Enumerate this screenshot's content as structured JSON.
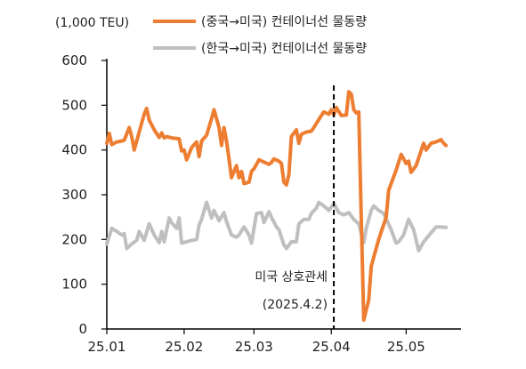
{
  "chart_data": {
    "type": "line",
    "unit_label": "(1,000 TEU)",
    "ylim": [
      0,
      600
    ],
    "yticks": [
      0,
      100,
      200,
      300,
      400,
      500,
      600
    ],
    "ytick_labels": [
      "0",
      "100",
      "200",
      "300",
      "400",
      "500",
      "600"
    ],
    "xticks": [
      {
        "date": "2025-01-01",
        "label": "25.01"
      },
      {
        "date": "2025-02-01",
        "label": "25.02"
      },
      {
        "date": "2025-03-01",
        "label": "25.03"
      },
      {
        "date": "2025-04-01",
        "label": "25.04"
      },
      {
        "date": "2025-05-01",
        "label": "25.05"
      }
    ],
    "x_range": [
      "2025-01-01",
      "2025-05-23"
    ],
    "grid": false,
    "legend_position": "top",
    "annotation": {
      "date": "2025-04-02",
      "line1": "미국 상호관세",
      "line2": "(2025.4.2)"
    },
    "series": [
      {
        "name": "(중국→미국) 컨테이너선 물동량",
        "color": "#ED7D31",
        "points": [
          [
            "2025-01-01",
            415
          ],
          [
            "2025-01-02",
            437
          ],
          [
            "2025-01-03",
            412
          ],
          [
            "2025-01-05",
            418
          ],
          [
            "2025-01-07",
            420
          ],
          [
            "2025-01-08",
            422
          ],
          [
            "2025-01-10",
            450
          ],
          [
            "2025-01-11",
            430
          ],
          [
            "2025-01-12",
            400
          ],
          [
            "2025-01-14",
            440
          ],
          [
            "2025-01-16",
            480
          ],
          [
            "2025-01-17",
            493
          ],
          [
            "2025-01-18",
            467
          ],
          [
            "2025-01-20",
            445
          ],
          [
            "2025-01-22",
            428
          ],
          [
            "2025-01-23",
            438
          ],
          [
            "2025-01-24",
            427
          ],
          [
            "2025-01-25",
            430
          ],
          [
            "2025-01-27",
            427
          ],
          [
            "2025-01-30",
            425
          ],
          [
            "2025-01-31",
            398
          ],
          [
            "2025-02-01",
            400
          ],
          [
            "2025-02-02",
            378
          ],
          [
            "2025-02-04",
            405
          ],
          [
            "2025-02-06",
            418
          ],
          [
            "2025-02-07",
            385
          ],
          [
            "2025-02-08",
            420
          ],
          [
            "2025-02-10",
            433
          ],
          [
            "2025-02-12",
            470
          ],
          [
            "2025-02-13",
            490
          ],
          [
            "2025-02-15",
            450
          ],
          [
            "2025-02-16",
            410
          ],
          [
            "2025-02-17",
            450
          ],
          [
            "2025-02-18",
            420
          ],
          [
            "2025-02-19",
            380
          ],
          [
            "2025-02-20",
            338
          ],
          [
            "2025-02-22",
            365
          ],
          [
            "2025-02-23",
            338
          ],
          [
            "2025-02-24",
            352
          ],
          [
            "2025-02-25",
            325
          ],
          [
            "2025-02-27",
            328
          ],
          [
            "2025-02-28",
            352
          ],
          [
            "2025-03-01",
            358
          ],
          [
            "2025-03-03",
            378
          ],
          [
            "2025-03-05",
            373
          ],
          [
            "2025-03-07",
            368
          ],
          [
            "2025-03-08",
            372
          ],
          [
            "2025-03-09",
            380
          ],
          [
            "2025-03-11",
            375
          ],
          [
            "2025-03-12",
            370
          ],
          [
            "2025-03-13",
            328
          ],
          [
            "2025-03-14",
            322
          ],
          [
            "2025-03-15",
            345
          ],
          [
            "2025-03-16",
            430
          ],
          [
            "2025-03-18",
            445
          ],
          [
            "2025-03-19",
            415
          ],
          [
            "2025-03-20",
            435
          ],
          [
            "2025-03-22",
            440
          ],
          [
            "2025-03-24",
            442
          ],
          [
            "2025-03-25",
            450
          ],
          [
            "2025-03-27",
            468
          ],
          [
            "2025-03-29",
            485
          ],
          [
            "2025-03-31",
            480
          ],
          [
            "2025-04-01",
            490
          ],
          [
            "2025-04-02",
            478
          ],
          [
            "2025-04-03",
            495
          ],
          [
            "2025-04-05",
            477
          ],
          [
            "2025-04-07",
            478
          ],
          [
            "2025-04-08",
            530
          ],
          [
            "2025-04-09",
            525
          ],
          [
            "2025-04-10",
            490
          ],
          [
            "2025-04-11",
            483
          ],
          [
            "2025-04-12",
            485
          ],
          [
            "2025-04-13",
            250
          ],
          [
            "2025-04-14",
            20
          ],
          [
            "2025-04-16",
            65
          ],
          [
            "2025-04-17",
            140
          ],
          [
            "2025-04-20",
            200
          ],
          [
            "2025-04-23",
            250
          ],
          [
            "2025-04-24",
            310
          ],
          [
            "2025-04-25",
            325
          ],
          [
            "2025-04-27",
            355
          ],
          [
            "2025-04-29",
            390
          ],
          [
            "2025-05-01",
            370
          ],
          [
            "2025-05-02",
            375
          ],
          [
            "2025-05-03",
            350
          ],
          [
            "2025-05-05",
            365
          ],
          [
            "2025-05-08",
            415
          ],
          [
            "2025-05-09",
            400
          ],
          [
            "2025-05-11",
            415
          ],
          [
            "2025-05-13",
            418
          ],
          [
            "2025-05-15",
            423
          ],
          [
            "2025-05-16",
            415
          ],
          [
            "2025-05-17",
            410
          ]
        ]
      },
      {
        "name": "(한국→미국) 컨테이너선 물동량",
        "color": "#BFBFBF",
        "points": [
          [
            "2025-01-01",
            190
          ],
          [
            "2025-01-03",
            225
          ],
          [
            "2025-01-05",
            218
          ],
          [
            "2025-01-07",
            210
          ],
          [
            "2025-01-08",
            213
          ],
          [
            "2025-01-09",
            180
          ],
          [
            "2025-01-11",
            190
          ],
          [
            "2025-01-13",
            198
          ],
          [
            "2025-01-14",
            218
          ],
          [
            "2025-01-16",
            198
          ],
          [
            "2025-01-18",
            235
          ],
          [
            "2025-01-20",
            210
          ],
          [
            "2025-01-22",
            193
          ],
          [
            "2025-01-23",
            218
          ],
          [
            "2025-01-24",
            195
          ],
          [
            "2025-01-26",
            248
          ],
          [
            "2025-01-27",
            237
          ],
          [
            "2025-01-29",
            225
          ],
          [
            "2025-01-30",
            248
          ],
          [
            "2025-01-31",
            192
          ],
          [
            "2025-02-02",
            195
          ],
          [
            "2025-02-04",
            198
          ],
          [
            "2025-02-06",
            200
          ],
          [
            "2025-02-07",
            232
          ],
          [
            "2025-02-08",
            245
          ],
          [
            "2025-02-10",
            283
          ],
          [
            "2025-02-12",
            248
          ],
          [
            "2025-02-13",
            265
          ],
          [
            "2025-02-15",
            242
          ],
          [
            "2025-02-17",
            260
          ],
          [
            "2025-02-18",
            240
          ],
          [
            "2025-02-20",
            210
          ],
          [
            "2025-02-22",
            205
          ],
          [
            "2025-02-23",
            210
          ],
          [
            "2025-02-25",
            228
          ],
          [
            "2025-02-27",
            210
          ],
          [
            "2025-02-28",
            192
          ],
          [
            "2025-03-02",
            258
          ],
          [
            "2025-03-04",
            260
          ],
          [
            "2025-03-05",
            238
          ],
          [
            "2025-03-07",
            262
          ],
          [
            "2025-03-08",
            250
          ],
          [
            "2025-03-10",
            228
          ],
          [
            "2025-03-11",
            222
          ],
          [
            "2025-03-13",
            188
          ],
          [
            "2025-03-14",
            180
          ],
          [
            "2025-03-16",
            195
          ],
          [
            "2025-03-18",
            195
          ],
          [
            "2025-03-19",
            235
          ],
          [
            "2025-03-21",
            245
          ],
          [
            "2025-03-23",
            245
          ],
          [
            "2025-03-24",
            258
          ],
          [
            "2025-03-26",
            270
          ],
          [
            "2025-03-27",
            283
          ],
          [
            "2025-03-29",
            275
          ],
          [
            "2025-03-31",
            265
          ],
          [
            "2025-04-02",
            280
          ],
          [
            "2025-04-04",
            260
          ],
          [
            "2025-04-06",
            255
          ],
          [
            "2025-04-08",
            260
          ],
          [
            "2025-04-10",
            245
          ],
          [
            "2025-04-12",
            235
          ],
          [
            "2025-04-14",
            193
          ],
          [
            "2025-04-15",
            225
          ],
          [
            "2025-04-17",
            265
          ],
          [
            "2025-04-18",
            275
          ],
          [
            "2025-04-20",
            265
          ],
          [
            "2025-04-22",
            258
          ],
          [
            "2025-04-25",
            222
          ],
          [
            "2025-04-27",
            192
          ],
          [
            "2025-04-28",
            195
          ],
          [
            "2025-04-30",
            210
          ],
          [
            "2025-05-02",
            245
          ],
          [
            "2025-05-04",
            222
          ],
          [
            "2025-05-06",
            175
          ],
          [
            "2025-05-08",
            195
          ],
          [
            "2025-05-11",
            215
          ],
          [
            "2025-05-13",
            228
          ],
          [
            "2025-05-15",
            228
          ],
          [
            "2025-05-17",
            227
          ]
        ]
      }
    ]
  }
}
